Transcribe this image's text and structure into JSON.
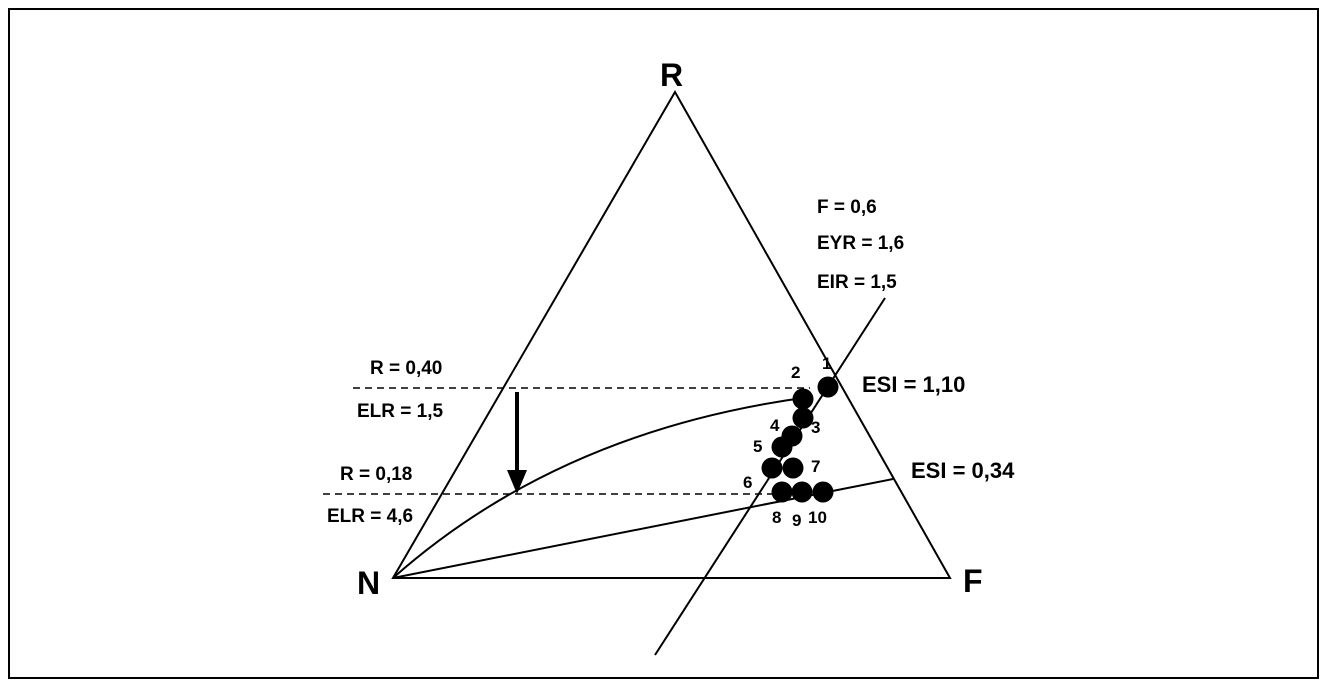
{
  "vertices": {
    "R": "R",
    "N": "N",
    "F": "F"
  },
  "annotations": {
    "f_line": "F = 0,6",
    "eyr_line": "EYR = 1,6",
    "eir_line": "EIR = 1,5",
    "r_high": "R = 0,40",
    "elr_high": "ELR = 1,5",
    "r_low": "R = 0,18",
    "elr_low": "ELR = 4,6",
    "esi_high": "ESI = 1,10",
    "esi_low": "ESI = 0,34"
  },
  "points": [
    {
      "label": "1"
    },
    {
      "label": "2"
    },
    {
      "label": "3"
    },
    {
      "label": "4"
    },
    {
      "label": "5"
    },
    {
      "label": "6"
    },
    {
      "label": "7"
    },
    {
      "label": "8"
    },
    {
      "label": "9"
    },
    {
      "label": "10"
    }
  ],
  "colors": {
    "ink": "#000000",
    "background": "#ffffff"
  }
}
